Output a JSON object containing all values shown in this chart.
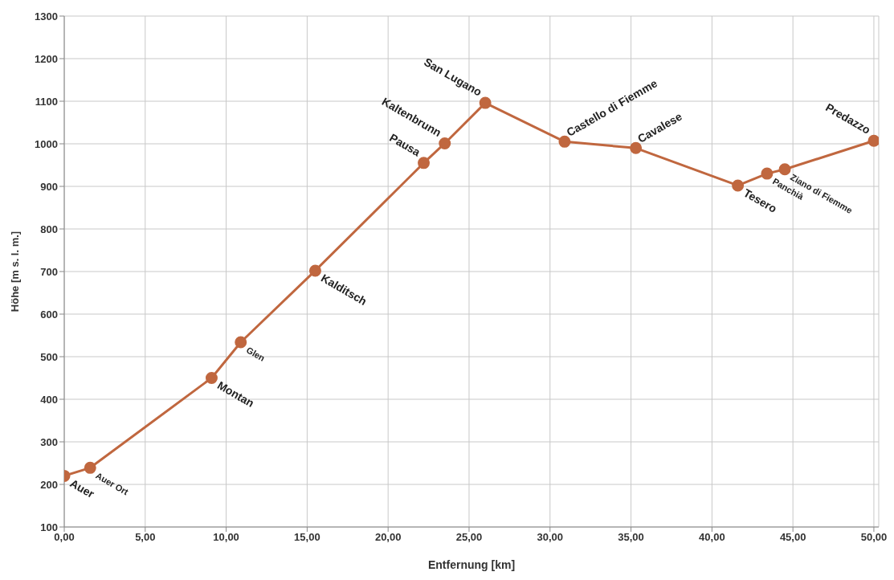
{
  "chart_data": {
    "type": "line",
    "xlabel": "Entfernung [km]",
    "ylabel": "Höhe [m s. l. m.]",
    "x": [
      0,
      1.6,
      9.1,
      10.9,
      15.5,
      22.2,
      23.5,
      26.0,
      30.9,
      35.3,
      41.6,
      43.4,
      44.5,
      50.0
    ],
    "series": [
      {
        "color": "#c0673f",
        "values": [
          220,
          239,
          450,
          534,
          702,
          955,
          1001,
          1096,
          1005,
          990,
          902,
          930,
          940,
          1007
        ]
      }
    ],
    "xlim": [
      0,
      50.3
    ],
    "xticks": [
      {
        "value": 0,
        "label": "0,00"
      },
      {
        "value": 5,
        "label": "5,00"
      },
      {
        "value": 10,
        "label": "10,00"
      },
      {
        "value": 15,
        "label": "15,00"
      },
      {
        "value": 20,
        "label": "20,00"
      },
      {
        "value": 25,
        "label": "25,00"
      },
      {
        "value": 30,
        "label": "30,00"
      },
      {
        "value": 35,
        "label": "35,00"
      },
      {
        "value": 40,
        "label": "40,00"
      },
      {
        "value": 45,
        "label": "45,00"
      },
      {
        "value": 50,
        "label": "50,00"
      }
    ],
    "ylim": [
      100,
      1300
    ],
    "yticks": [
      100,
      200,
      300,
      400,
      500,
      600,
      700,
      800,
      900,
      1000,
      1100,
      1200,
      1300
    ],
    "grid": true,
    "marker": "circle",
    "line_style": "solid",
    "legend": false,
    "annotations": [
      {
        "text": "Auer",
        "x": 0,
        "y": 220
      },
      {
        "text": "Auer Ort",
        "x": 1.6,
        "y": 239
      },
      {
        "text": "Montan",
        "x": 9.1,
        "y": 450
      },
      {
        "text": "Glen",
        "x": 10.9,
        "y": 534
      },
      {
        "text": "Kalditsch",
        "x": 15.5,
        "y": 702
      },
      {
        "text": "Pausa",
        "x": 22.2,
        "y": 955
      },
      {
        "text": "Kaltenbrunn",
        "x": 23.5,
        "y": 1001
      },
      {
        "text": "San Lugano",
        "x": 26.0,
        "y": 1096
      },
      {
        "text": "Castello di Fiemme",
        "x": 30.9,
        "y": 1005
      },
      {
        "text": "Cavalese",
        "x": 35.3,
        "y": 990
      },
      {
        "text": "Tesero",
        "x": 41.6,
        "y": 902
      },
      {
        "text": "Panchià",
        "x": 43.4,
        "y": 930
      },
      {
        "text": "Ziano di Fiemme",
        "x": 44.5,
        "y": 940
      },
      {
        "text": "Predazzo",
        "x": 50.0,
        "y": 1007
      }
    ]
  }
}
